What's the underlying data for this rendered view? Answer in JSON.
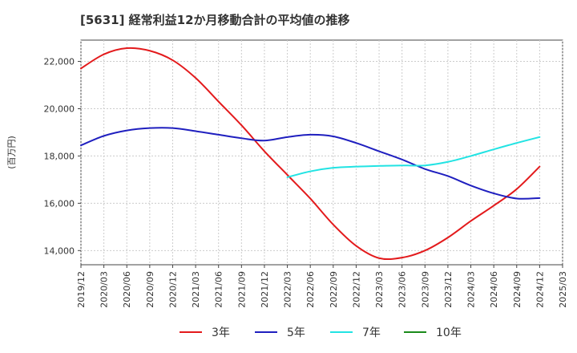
{
  "title": "[5631]  経常利益12か月移動合計の平均値の推移",
  "chart_data": {
    "type": "line",
    "title": "[5631]  経常利益12か月移動合計の平均値の推移",
    "ylabel": "(百万円)",
    "xlabel": "",
    "ylim": [
      13400,
      22900
    ],
    "yticks": [
      14000,
      16000,
      18000,
      20000,
      22000
    ],
    "ytick_labels": [
      "14,000",
      "16,000",
      "18,000",
      "20,000",
      "22,000"
    ],
    "xlim": [
      "2019-12",
      "2025-03"
    ],
    "xtick_labels": [
      "2019/12",
      "2020/03",
      "2020/06",
      "2020/09",
      "2020/12",
      "2021/03",
      "2021/06",
      "2021/09",
      "2021/12",
      "2022/03",
      "2022/06",
      "2022/09",
      "2022/12",
      "2023/03",
      "2023/06",
      "2023/09",
      "2023/12",
      "2024/03",
      "2024/06",
      "2024/09",
      "2024/12",
      "2025/03"
    ],
    "grid": true,
    "legend_position": "bottom",
    "series": [
      {
        "name": "3年",
        "color": "#e31a1c",
        "points": [
          [
            "2019-12",
            21700
          ],
          [
            "2020-03",
            22300
          ],
          [
            "2020-06",
            22560
          ],
          [
            "2020-09",
            22450
          ],
          [
            "2020-12",
            22050
          ],
          [
            "2021-03",
            21300
          ],
          [
            "2021-06",
            20300
          ],
          [
            "2021-09",
            19300
          ],
          [
            "2021-12",
            18200
          ],
          [
            "2022-03",
            17200
          ],
          [
            "2022-06",
            16200
          ],
          [
            "2022-09",
            15100
          ],
          [
            "2022-12",
            14200
          ],
          [
            "2023-03",
            13680
          ],
          [
            "2023-06",
            13700
          ],
          [
            "2023-09",
            14000
          ],
          [
            "2023-12",
            14550
          ],
          [
            "2024-03",
            15250
          ],
          [
            "2024-06",
            15900
          ],
          [
            "2024-09",
            16600
          ],
          [
            "2024-12",
            17550
          ]
        ]
      },
      {
        "name": "5年",
        "color": "#1f1fbf",
        "points": [
          [
            "2019-12",
            18450
          ],
          [
            "2020-03",
            18850
          ],
          [
            "2020-06",
            19080
          ],
          [
            "2020-09",
            19180
          ],
          [
            "2020-12",
            19180
          ],
          [
            "2021-03",
            19050
          ],
          [
            "2021-06",
            18900
          ],
          [
            "2021-09",
            18750
          ],
          [
            "2021-12",
            18650
          ],
          [
            "2022-03",
            18800
          ],
          [
            "2022-06",
            18900
          ],
          [
            "2022-09",
            18830
          ],
          [
            "2022-12",
            18550
          ],
          [
            "2023-03",
            18200
          ],
          [
            "2023-06",
            17850
          ],
          [
            "2023-09",
            17450
          ],
          [
            "2023-12",
            17150
          ],
          [
            "2024-03",
            16750
          ],
          [
            "2024-06",
            16420
          ],
          [
            "2024-09",
            16200
          ],
          [
            "2024-12",
            16220
          ]
        ]
      },
      {
        "name": "7年",
        "color": "#22e3e3",
        "points": [
          [
            "2022-03",
            17100
          ],
          [
            "2022-06",
            17350
          ],
          [
            "2022-09",
            17500
          ],
          [
            "2022-12",
            17550
          ],
          [
            "2023-03",
            17580
          ],
          [
            "2023-06",
            17600
          ],
          [
            "2023-09",
            17600
          ],
          [
            "2023-12",
            17750
          ],
          [
            "2024-03",
            18000
          ],
          [
            "2024-06",
            18280
          ],
          [
            "2024-09",
            18550
          ],
          [
            "2024-12",
            18800
          ]
        ]
      },
      {
        "name": "10年",
        "color": "#1a8a1a",
        "points": []
      }
    ]
  }
}
